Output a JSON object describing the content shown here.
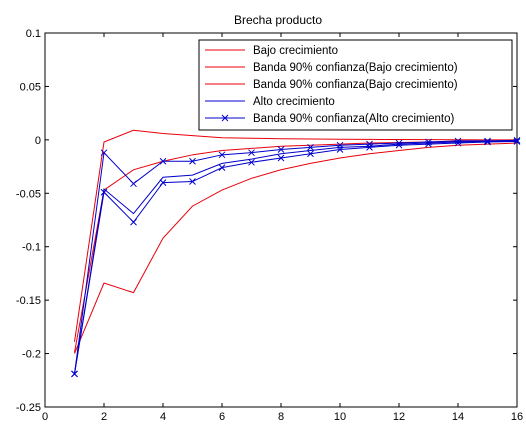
{
  "chart_data": {
    "type": "line",
    "title": "Brecha producto",
    "xlabel": "",
    "ylabel": "",
    "xlim": [
      0,
      16
    ],
    "ylim": [
      -0.25,
      0.1
    ],
    "xticks": [
      0,
      2,
      4,
      6,
      8,
      10,
      12,
      14,
      16
    ],
    "yticks": [
      -0.25,
      -0.2,
      -0.15,
      -0.1,
      -0.05,
      0,
      0.05,
      0.1
    ],
    "ytick_labels": [
      "-0.25",
      "-0.2",
      "-0.15",
      "-0.1",
      "-0.05",
      "0",
      "0.05",
      "0.1"
    ],
    "grid": false,
    "legend_position": "top-right",
    "x": [
      1,
      2,
      3,
      4,
      5,
      6,
      7,
      8,
      9,
      10,
      11,
      12,
      13,
      14,
      15,
      16
    ],
    "series": [
      {
        "name": "Bajo crecimiento",
        "color": "#e8000b",
        "marker": "none",
        "values": [
          -0.199,
          -0.047,
          -0.028,
          -0.02,
          -0.014,
          -0.01,
          -0.008,
          -0.006,
          -0.005,
          -0.004,
          -0.003,
          -0.0025,
          -0.002,
          -0.0015,
          -0.0012,
          -0.001
        ]
      },
      {
        "name": "Banda 90% confianza(Bajo crecimiento)",
        "color": "#e8000b",
        "marker": "none",
        "values": [
          -0.189,
          -0.002,
          0.009,
          0.006,
          0.004,
          0.002,
          0.0015,
          0.001,
          0.0008,
          0.0006,
          0.0004,
          0.0003,
          0.0002,
          0.0001,
          0.0,
          0.0
        ]
      },
      {
        "name": "Banda 90% confianza(Bajo crecimiento)",
        "color": "#e8000b",
        "marker": "none",
        "values": [
          -0.2,
          -0.134,
          -0.143,
          -0.092,
          -0.062,
          -0.047,
          -0.036,
          -0.028,
          -0.022,
          -0.017,
          -0.013,
          -0.01,
          -0.007,
          -0.005,
          -0.004,
          -0.003
        ]
      },
      {
        "name": "Alto crecimiento",
        "color": "#0000cc",
        "marker": "none",
        "values": [
          -0.219,
          -0.046,
          -0.069,
          -0.035,
          -0.033,
          -0.022,
          -0.018,
          -0.013,
          -0.01,
          -0.007,
          -0.006,
          -0.004,
          -0.003,
          -0.002,
          -0.0015,
          -0.001
        ]
      },
      {
        "name": "Banda 90% confianza(Alto crecimiento)",
        "color": "#0000cc",
        "marker": "x",
        "values": [
          -0.219,
          -0.012,
          -0.041,
          -0.02,
          -0.02,
          -0.014,
          -0.012,
          -0.009,
          -0.007,
          -0.005,
          -0.004,
          -0.003,
          -0.002,
          -0.001,
          -0.001,
          -0.0005
        ]
      },
      {
        "name": "Banda 90% confianza(Alto crecimiento)",
        "color": "#0000cc",
        "marker": "x",
        "values": [
          -0.219,
          -0.049,
          -0.077,
          -0.04,
          -0.039,
          -0.026,
          -0.021,
          -0.017,
          -0.013,
          -0.009,
          -0.007,
          -0.005,
          -0.004,
          -0.003,
          -0.002,
          -0.0015
        ]
      }
    ],
    "legend": [
      {
        "label": "Bajo crecimiento",
        "color": "#e8000b",
        "marker": "none"
      },
      {
        "label": "Banda 90% confianza(Bajo crecimiento)",
        "color": "#e8000b",
        "marker": "none"
      },
      {
        "label": "Banda 90% confianza(Bajo crecimiento)",
        "color": "#e8000b",
        "marker": "none"
      },
      {
        "label": "Alto crecimiento",
        "color": "#0000cc",
        "marker": "none"
      },
      {
        "label": "Banda 90% confianza(Alto crecimiento)",
        "color": "#0000cc",
        "marker": "x"
      }
    ]
  }
}
